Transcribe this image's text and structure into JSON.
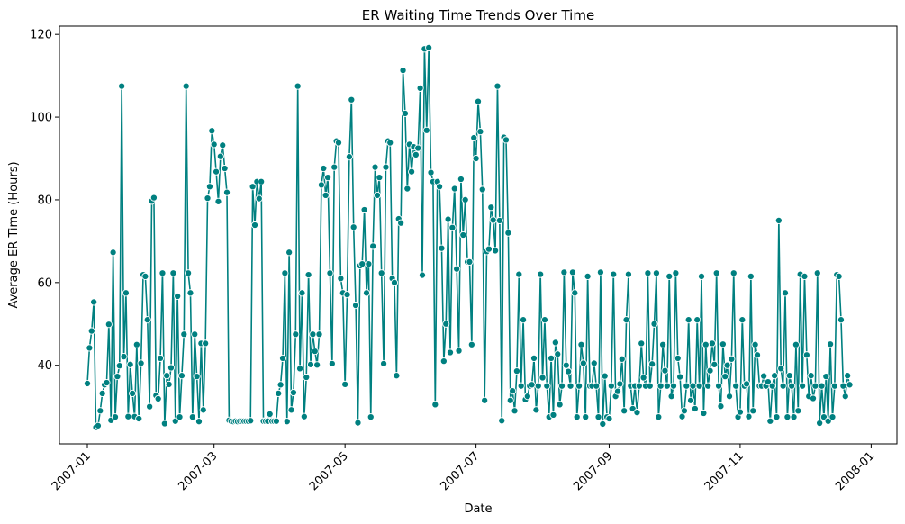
{
  "chart_data": {
    "type": "line",
    "title": "ER Waiting Time Trends Over Time",
    "xlabel": "Date",
    "ylabel": "Average ER Time (Hours)",
    "x_ticks": [
      "2007-01",
      "2007-03",
      "2007-05",
      "2007-07",
      "2007-09",
      "2007-11",
      "2008-01"
    ],
    "y_ticks": [
      40,
      60,
      80,
      100,
      120
    ],
    "xlim": [
      "2006-12-19",
      "2008-01-13"
    ],
    "ylim": [
      21,
      122
    ],
    "line_color": "#008080",
    "marker": "circle",
    "grid": false,
    "series": [
      {
        "x_start": "2007-01-01",
        "x_step_days": 1,
        "values": [
          35.6,
          44.2,
          48.3,
          55.3,
          25,
          25.4,
          29,
          33.2,
          35.3,
          35.8,
          49.9,
          26.7,
          67.3,
          27.5,
          37.3,
          39.9,
          107.5,
          42.1,
          57.5,
          27.6,
          40.2,
          33.2,
          27.6,
          45,
          27.1,
          40.5,
          61.9,
          61.5,
          51,
          30,
          79.7,
          80.5,
          32.7,
          31.9,
          41.7,
          62.3,
          25.9,
          37.5,
          35.4,
          39.4,
          62.3,
          26.5,
          56.7,
          27.5,
          37.5,
          47.5,
          107.5,
          62.3,
          57.5,
          27.5,
          47.5,
          37.3,
          26.4,
          45.3,
          29.2,
          45.3,
          80.4,
          83.2,
          96.7,
          93.4,
          86.8,
          79.6,
          90.5,
          93.2,
          87.6,
          81.8,
          26.7,
          26.5,
          26.4,
          26.5,
          26.4,
          26.5,
          26.5,
          26.5,
          26.5,
          26.5,
          26.6,
          83.2,
          73.9,
          84.4,
          80.3,
          84.4,
          26.5,
          26.5,
          26.5,
          28.2,
          26.5,
          26.5,
          26.5,
          33.2,
          35.3,
          41.7,
          62.3,
          26.4,
          67.3,
          29.2,
          33.4,
          47.5,
          107.5,
          39.2,
          57.5,
          27.6,
          37.1,
          61.9,
          40.2,
          47.5,
          43.4,
          40.1,
          47.5,
          83.6,
          87.6,
          81.1,
          85.4,
          62.3,
          40.4,
          87.9,
          94.2,
          93.8,
          61,
          57.5,
          35.4,
          57.1,
          90.4,
          104.2,
          73.4,
          54.5,
          26.1,
          64.1,
          64.5,
          77.6,
          57.5,
          64.5,
          27.5,
          68.8,
          87.9,
          81.1,
          85.4,
          62.3,
          40.4,
          87.9,
          94.2,
          93.8,
          61,
          60,
          37.5,
          75.4,
          74.4,
          111.3,
          100.9,
          82.7,
          93.4,
          86.8,
          92.8,
          90.9,
          92.5,
          107,
          61.8,
          116.5,
          96.8,
          116.8,
          86.6,
          84.4,
          30.5,
          84.4,
          83.2,
          68.3,
          41,
          50,
          75.3,
          43.1,
          73.3,
          82.7,
          63.3,
          43.5,
          85,
          71.5,
          80,
          65,
          65,
          45,
          95,
          90,
          103.8,
          96.5,
          82.5,
          31.5,
          67.5,
          68.1,
          78.2,
          75.1,
          67.7,
          107.5,
          75,
          26.6,
          95.1,
          94.5,
          72,
          31.5,
          33.8,
          29,
          38.6,
          62,
          35,
          51,
          31.7,
          32.5,
          35,
          35.3,
          41.7,
          29.2,
          35,
          62,
          37,
          51,
          35,
          27.5,
          41.7,
          28,
          45.5,
          42.7,
          30.5,
          35,
          62.5,
          40,
          38.5,
          35,
          62.5,
          57.5,
          27.5,
          35,
          45,
          40.5,
          27.5,
          61.5,
          35,
          35,
          40.5,
          35,
          27.5,
          62.5,
          25.8,
          37.4,
          27.5,
          27.1,
          35,
          62,
          32.5,
          33.7,
          35.5,
          41.5,
          29,
          51,
          62,
          35,
          29.5,
          35,
          28.6,
          35,
          45.3,
          37,
          35,
          62.3,
          35,
          40.3,
          50,
          62.3,
          27.5,
          35,
          45,
          38.7,
          35,
          61.5,
          32.5,
          35,
          62.3,
          41.7,
          37.2,
          27.6,
          29,
          35,
          51,
          31.5,
          35,
          29.5,
          51,
          35,
          61.5,
          28.4,
          45,
          35,
          38.7,
          45.3,
          40.2,
          62.3,
          35,
          30.1,
          45.1,
          37.3,
          40,
          32.5,
          41.5,
          62.3,
          35,
          27.5,
          28.7,
          51,
          35,
          35.5,
          27.6,
          61.5,
          29,
          45,
          42.5,
          35,
          35,
          37.4,
          35,
          36,
          26.5,
          35,
          37.5,
          27.5,
          75,
          39.2,
          35,
          57.5,
          27.5,
          37.5,
          35,
          27.5,
          45,
          29,
          62,
          35,
          61.5,
          42.5,
          32.5,
          37.5,
          32,
          35,
          62.3,
          26,
          35,
          27.5,
          37.3,
          26.5,
          45.1,
          27.5,
          35,
          61.9,
          61.5,
          51,
          35,
          32.5,
          37.5,
          35.3
        ]
      }
    ]
  }
}
